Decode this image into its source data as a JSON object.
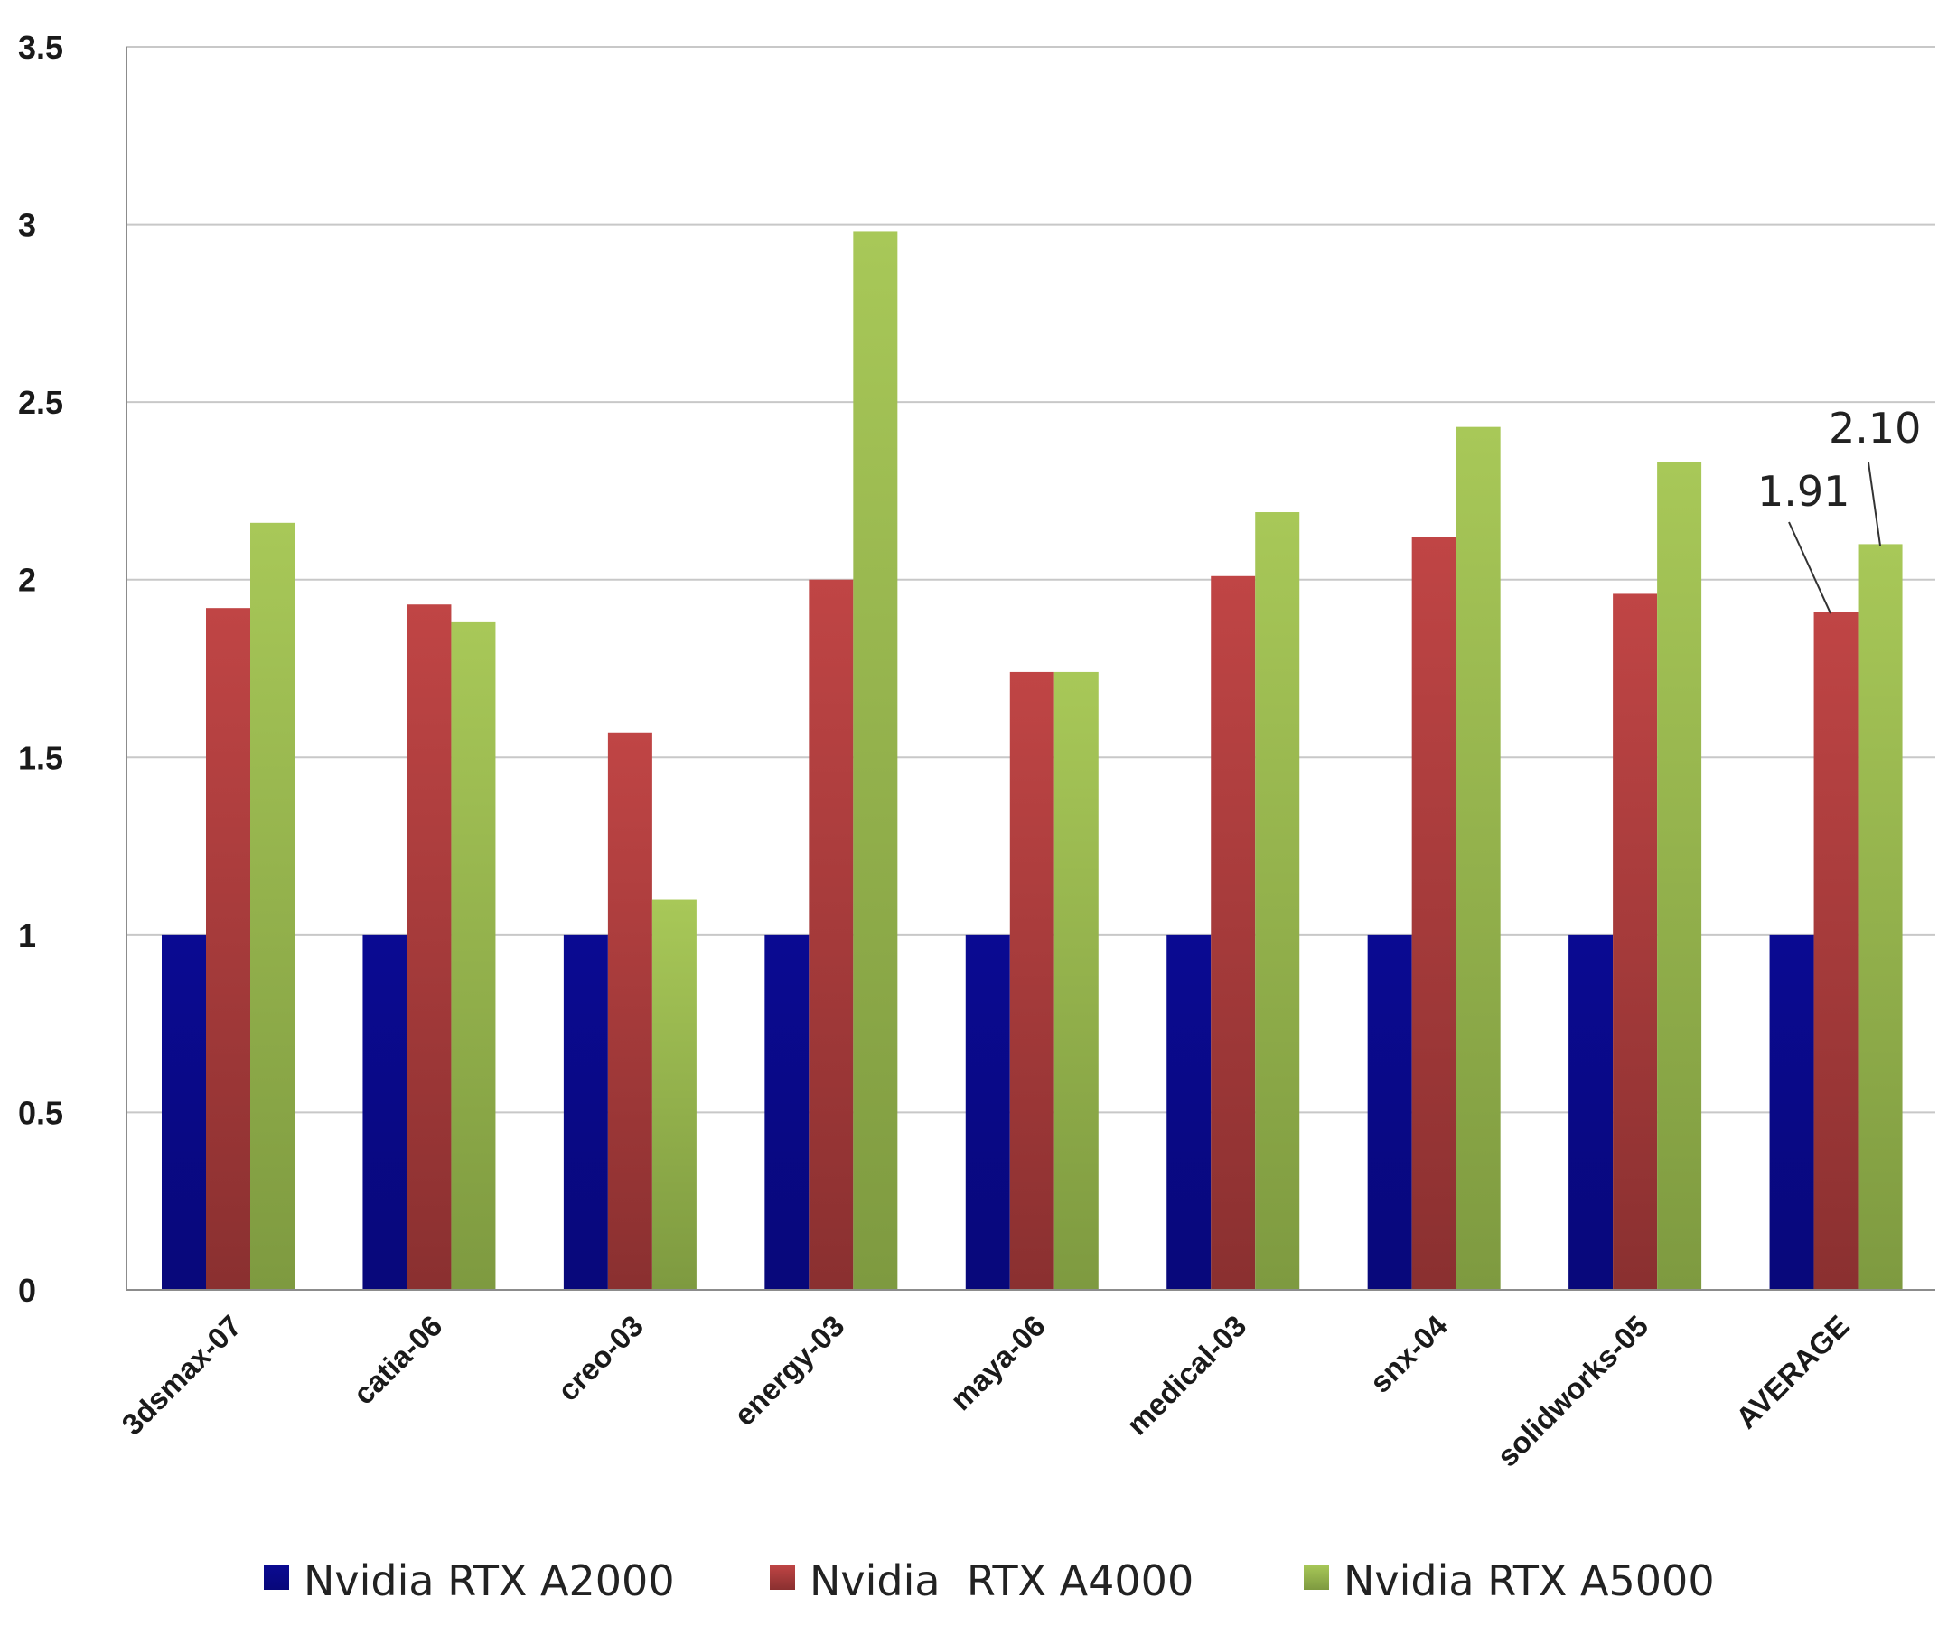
{
  "chart_data": {
    "type": "bar",
    "title": "",
    "xlabel": "",
    "ylabel": "",
    "ylim": [
      0,
      3.5
    ],
    "yticks": [
      "0",
      "0.5",
      "1",
      "1.5",
      "2",
      "2.5",
      "3",
      "3.5"
    ],
    "grid": true,
    "legend_position": "bottom",
    "categories": [
      "3dsmax-07",
      "catia-06",
      "creo-03",
      "energy-03",
      "maya-06",
      "medical-03",
      "snx-04",
      "solidworks-05",
      "AVERAGE"
    ],
    "series": [
      {
        "name": "Nvidia RTX A2000",
        "color": "#0b0b8c",
        "values": [
          1,
          1,
          1,
          1,
          1,
          1,
          1,
          1,
          1
        ]
      },
      {
        "name": "Nvidia  RTX A4000",
        "color": "#b03a3a",
        "values": [
          1.92,
          1.93,
          1.57,
          2.0,
          1.74,
          2.01,
          2.12,
          1.96,
          1.91
        ]
      },
      {
        "name": "Nvidia RTX A5000",
        "color": "#9dbf4a",
        "values": [
          2.16,
          1.88,
          1.1,
          2.98,
          1.74,
          2.19,
          2.43,
          2.33,
          2.1
        ]
      }
    ],
    "annotations": [
      {
        "text": "1.91",
        "category": "AVERAGE",
        "series": 1
      },
      {
        "text": "2.10",
        "category": "AVERAGE",
        "series": 2
      }
    ]
  }
}
